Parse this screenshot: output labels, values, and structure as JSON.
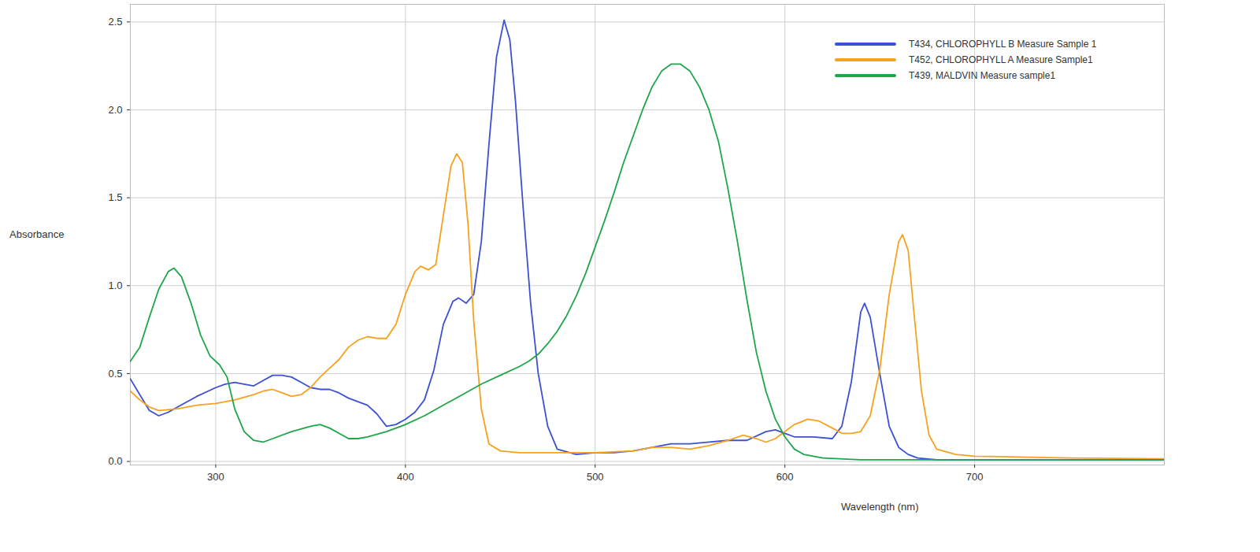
{
  "chart_data": {
    "type": "line",
    "x_label": "Wavelength (nm)",
    "y_label": "Absorbance",
    "xlim": [
      255,
      800
    ],
    "ylim": [
      -0.02,
      2.6
    ],
    "xticks": [
      300,
      400,
      500,
      600,
      700
    ],
    "yticks": [
      {
        "value": 0,
        "label": "0.0"
      },
      0.5,
      {
        "value": 1,
        "label": "1.0"
      },
      1.5,
      {
        "value": 2,
        "label": "2.0"
      },
      2.5
    ],
    "grid": true,
    "legend": "top-right",
    "series": [
      {
        "name": "T434, CHLOROPHYLL B Measure Sample 1",
        "color": "#3d50d4",
        "marker": "none",
        "line_style": "solid",
        "x": [
          255,
          260,
          265,
          270,
          275,
          280,
          290,
          300,
          305,
          310,
          315,
          320,
          325,
          330,
          335,
          340,
          345,
          350,
          355,
          360,
          365,
          370,
          375,
          380,
          385,
          390,
          395,
          400,
          405,
          410,
          415,
          420,
          425,
          428,
          432,
          436,
          440,
          444,
          448,
          452,
          455,
          458,
          462,
          466,
          470,
          475,
          480,
          490,
          500,
          510,
          520,
          530,
          540,
          550,
          560,
          570,
          580,
          590,
          595,
          600,
          605,
          615,
          625,
          630,
          635,
          640,
          642,
          645,
          650,
          655,
          660,
          665,
          670,
          680,
          700,
          750,
          800
        ],
        "values": [
          0.47,
          0.38,
          0.29,
          0.26,
          0.28,
          0.31,
          0.37,
          0.42,
          0.44,
          0.45,
          0.44,
          0.43,
          0.46,
          0.49,
          0.49,
          0.48,
          0.45,
          0.42,
          0.41,
          0.41,
          0.39,
          0.36,
          0.34,
          0.32,
          0.27,
          0.2,
          0.21,
          0.24,
          0.28,
          0.35,
          0.52,
          0.78,
          0.91,
          0.93,
          0.9,
          0.95,
          1.25,
          1.8,
          2.3,
          2.51,
          2.4,
          2.05,
          1.45,
          0.9,
          0.5,
          0.2,
          0.07,
          0.04,
          0.05,
          0.05,
          0.06,
          0.08,
          0.1,
          0.1,
          0.11,
          0.12,
          0.12,
          0.17,
          0.18,
          0.16,
          0.14,
          0.14,
          0.13,
          0.2,
          0.45,
          0.85,
          0.9,
          0.82,
          0.5,
          0.2,
          0.08,
          0.04,
          0.02,
          0.01,
          0.01,
          0.01,
          0.01
        ]
      },
      {
        "name": "T452, CHLOROPHYLL A Measure Sample1",
        "color": "#f5a21e",
        "marker": "none",
        "line_style": "solid",
        "x": [
          255,
          260,
          265,
          270,
          280,
          290,
          300,
          310,
          320,
          325,
          330,
          335,
          340,
          345,
          350,
          355,
          360,
          365,
          370,
          375,
          380,
          385,
          390,
          395,
          400,
          405,
          408,
          412,
          416,
          420,
          424,
          427,
          430,
          433,
          436,
          440,
          444,
          450,
          460,
          480,
          500,
          520,
          530,
          540,
          550,
          560,
          570,
          578,
          585,
          590,
          595,
          600,
          605,
          612,
          618,
          625,
          630,
          635,
          640,
          645,
          650,
          655,
          660,
          662,
          665,
          668,
          672,
          676,
          680,
          690,
          700,
          750,
          800
        ],
        "values": [
          0.4,
          0.35,
          0.31,
          0.29,
          0.3,
          0.32,
          0.33,
          0.35,
          0.38,
          0.4,
          0.41,
          0.39,
          0.37,
          0.38,
          0.42,
          0.48,
          0.53,
          0.58,
          0.65,
          0.69,
          0.71,
          0.7,
          0.7,
          0.78,
          0.95,
          1.08,
          1.11,
          1.09,
          1.12,
          1.4,
          1.68,
          1.75,
          1.7,
          1.35,
          0.8,
          0.3,
          0.1,
          0.06,
          0.05,
          0.05,
          0.05,
          0.06,
          0.08,
          0.08,
          0.07,
          0.09,
          0.12,
          0.15,
          0.13,
          0.11,
          0.13,
          0.17,
          0.21,
          0.24,
          0.23,
          0.19,
          0.16,
          0.16,
          0.17,
          0.26,
          0.52,
          0.95,
          1.25,
          1.29,
          1.2,
          0.85,
          0.4,
          0.15,
          0.07,
          0.04,
          0.03,
          0.02,
          0.015
        ]
      },
      {
        "name": "T439, MALDVIN Measure sample1",
        "color": "#1fa64a",
        "marker": "none",
        "line_style": "solid",
        "x": [
          255,
          260,
          265,
          270,
          275,
          278,
          282,
          287,
          292,
          297,
          302,
          306,
          310,
          315,
          320,
          325,
          330,
          340,
          350,
          355,
          360,
          365,
          370,
          375,
          380,
          390,
          400,
          410,
          420,
          430,
          440,
          450,
          460,
          465,
          470,
          475,
          480,
          485,
          490,
          495,
          500,
          505,
          510,
          515,
          520,
          525,
          530,
          535,
          540,
          545,
          550,
          555,
          560,
          565,
          570,
          575,
          580,
          585,
          590,
          595,
          600,
          605,
          610,
          620,
          640,
          700,
          800
        ],
        "values": [
          0.57,
          0.65,
          0.82,
          0.98,
          1.08,
          1.1,
          1.05,
          0.9,
          0.72,
          0.6,
          0.55,
          0.48,
          0.3,
          0.17,
          0.12,
          0.11,
          0.13,
          0.17,
          0.2,
          0.21,
          0.19,
          0.16,
          0.13,
          0.13,
          0.14,
          0.17,
          0.21,
          0.26,
          0.32,
          0.38,
          0.44,
          0.49,
          0.54,
          0.57,
          0.61,
          0.67,
          0.74,
          0.83,
          0.94,
          1.07,
          1.22,
          1.37,
          1.53,
          1.7,
          1.85,
          2.0,
          2.13,
          2.22,
          2.26,
          2.26,
          2.22,
          2.13,
          2.0,
          1.82,
          1.55,
          1.25,
          0.92,
          0.62,
          0.4,
          0.24,
          0.14,
          0.07,
          0.04,
          0.02,
          0.01,
          0.01,
          0.01
        ]
      }
    ]
  }
}
